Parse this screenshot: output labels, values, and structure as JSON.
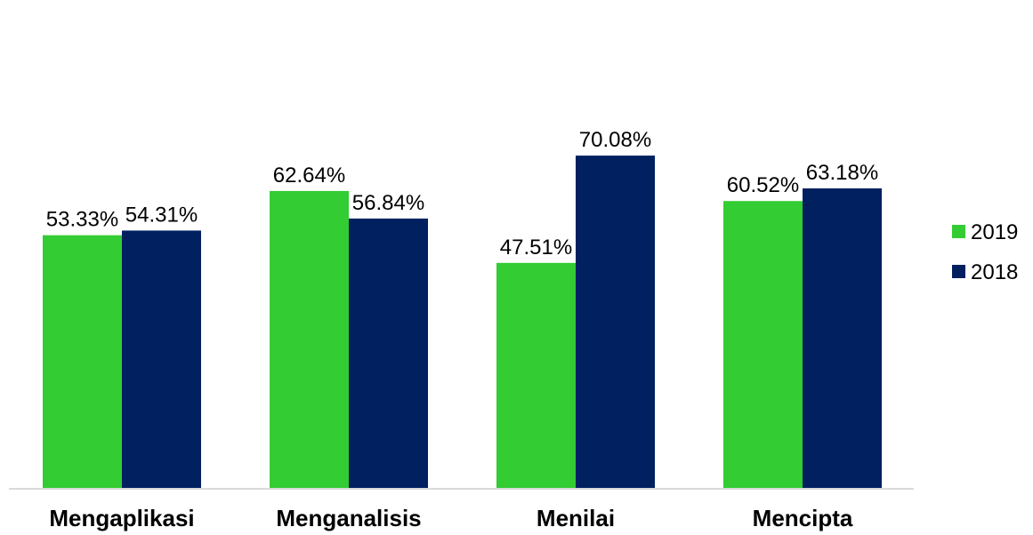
{
  "chart_data": {
    "type": "bar",
    "categories": [
      "Mengaplikasi",
      "Menganalisis",
      "Menilai",
      "Mencipta"
    ],
    "series": [
      {
        "name": "2019",
        "color": "#33cc33",
        "values": [
          53.33,
          62.64,
          47.51,
          60.52
        ],
        "labels": [
          "53.33%",
          "62.64%",
          "47.51%",
          "60.52%"
        ]
      },
      {
        "name": "2018",
        "color": "#002060",
        "values": [
          54.31,
          56.84,
          70.08,
          63.18
        ],
        "labels": [
          "54.31%",
          "56.84%",
          "70.08%",
          "63.18%"
        ]
      }
    ],
    "legend_position": "right",
    "grid": false,
    "ylim": [
      0,
      80
    ]
  }
}
